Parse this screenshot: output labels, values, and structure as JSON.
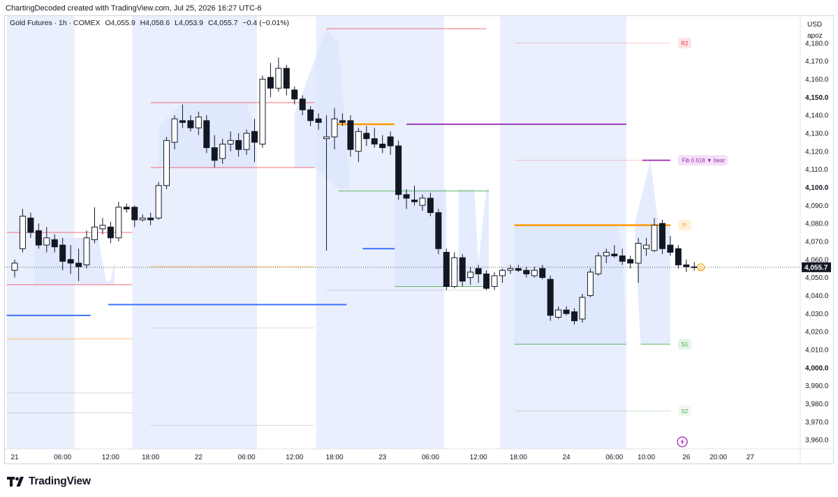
{
  "header": {
    "credit": "ChartingDecoded created with TradingView.com, Jul 25, 2026 16:27 UTC-6"
  },
  "legend": {
    "symbol": "Gold Futures · 1h · COMEX",
    "open": "O4,055.9",
    "high": "H4,058.6",
    "low": "L4,053.9",
    "close": "C4,055.7",
    "change": "−0.4 (−0.01%)"
  },
  "axis": {
    "currency": "USD",
    "user": "apoz"
  },
  "footer": {
    "brand": "TradingView"
  },
  "colors": {
    "session_shade": "#e9effd",
    "candle_body": "#131722",
    "candle_hollow": "#ffffff",
    "resistance": "#f7525f",
    "support": "#4caf50",
    "pivot": "#ff9800",
    "fib": "#9c27b0",
    "level_blue": "#2962ff",
    "zone_fill": "#dbe6fc",
    "price_label": "#131722"
  },
  "chart_data": {
    "type": "candlestick",
    "instrument": "Gold Futures · 1h · COMEX",
    "ylim": [
      3955,
      4195
    ],
    "y_ticks": [
      3960,
      3970,
      3980,
      3990,
      4000,
      4010,
      4020,
      4030,
      4040,
      4050,
      4060,
      4070,
      4080,
      4090,
      4100,
      4110,
      4120,
      4130,
      4140,
      4150,
      4160,
      4170,
      4180
    ],
    "y_tick_labels": [
      "3,960.0",
      "3,970.0",
      "3,980.0",
      "3,990.0",
      "4,000.0",
      "4,010.0",
      "4,020.0",
      "4,030.0",
      "4,040.0",
      "4,050.0",
      "4,060.0",
      "4,070.0",
      "4,080.0",
      "4,090.0",
      "4,100.0",
      "4,110.0",
      "4,120.0",
      "4,130.0",
      "4,140.0",
      "4,150.0",
      "4,160.0",
      "4,170.0",
      "4,180.0"
    ],
    "bold_ticks": [
      4000,
      4100,
      4150
    ],
    "x_labels": [
      {
        "label": "21",
        "hour": 0
      },
      {
        "label": "06:00",
        "hour": 6
      },
      {
        "label": "12:00",
        "hour": 12
      },
      {
        "label": "18:00",
        "hour": 17
      },
      {
        "label": "22",
        "hour": 23
      },
      {
        "label": "06:00",
        "hour": 29
      },
      {
        "label": "12:00",
        "hour": 35
      },
      {
        "label": "18:00",
        "hour": 40
      },
      {
        "label": "23",
        "hour": 46
      },
      {
        "label": "06:00",
        "hour": 52
      },
      {
        "label": "12:00",
        "hour": 58
      },
      {
        "label": "18:00",
        "hour": 63
      },
      {
        "label": "24",
        "hour": 69
      },
      {
        "label": "06:00",
        "hour": 75
      },
      {
        "label": "10:00",
        "hour": 79
      },
      {
        "label": "26",
        "hour": 84
      },
      {
        "label": "20:00",
        "hour": 88
      },
      {
        "label": "27",
        "hour": 92
      }
    ],
    "candles": [
      {
        "t": 0,
        "o": 4054,
        "h": 4060,
        "l": 4050,
        "c": 4058
      },
      {
        "t": 1,
        "o": 4066,
        "h": 4088,
        "l": 4064,
        "c": 4084
      },
      {
        "t": 2,
        "o": 4083,
        "h": 4086,
        "l": 4072,
        "c": 4075
      },
      {
        "t": 3,
        "o": 4076,
        "h": 4080,
        "l": 4066,
        "c": 4068
      },
      {
        "t": 4,
        "o": 4068,
        "h": 4078,
        "l": 4064,
        "c": 4072
      },
      {
        "t": 5,
        "o": 4071,
        "h": 4074,
        "l": 4064,
        "c": 4067
      },
      {
        "t": 6,
        "o": 4068,
        "h": 4072,
        "l": 4054,
        "c": 4059
      },
      {
        "t": 7,
        "o": 4060,
        "h": 4068,
        "l": 4052,
        "c": 4058
      },
      {
        "t": 8,
        "o": 4058,
        "h": 4066,
        "l": 4048,
        "c": 4056
      },
      {
        "t": 9,
        "o": 4057,
        "h": 4076,
        "l": 4055,
        "c": 4072
      },
      {
        "t": 10,
        "o": 4071,
        "h": 4089,
        "l": 4069,
        "c": 4078
      },
      {
        "t": 11,
        "o": 4077,
        "h": 4083,
        "l": 4074,
        "c": 4079
      },
      {
        "t": 12,
        "o": 4078,
        "h": 4081,
        "l": 4069,
        "c": 4072
      },
      {
        "t": 13,
        "o": 4072,
        "h": 4092,
        "l": 4070,
        "c": 4089
      },
      {
        "t": 14,
        "o": 4089,
        "h": 4091,
        "l": 4086,
        "c": 4088
      },
      {
        "t": 15,
        "o": 4089,
        "h": 4090,
        "l": 4078,
        "c": 4082
      },
      {
        "t": 16,
        "o": 4082,
        "h": 4085,
        "l": 4081,
        "c": 4083
      },
      {
        "t": 17,
        "o": 4083,
        "h": 4086,
        "l": 4079,
        "c": 4082
      },
      {
        "t": 18,
        "o": 4083,
        "h": 4103,
        "l": 4082,
        "c": 4101
      },
      {
        "t": 19,
        "o": 4101,
        "h": 4128,
        "l": 4099,
        "c": 4126
      },
      {
        "t": 20,
        "o": 4125,
        "h": 4140,
        "l": 4121,
        "c": 4138
      },
      {
        "t": 21,
        "o": 4137,
        "h": 4146,
        "l": 4133,
        "c": 4136
      },
      {
        "t": 22,
        "o": 4137,
        "h": 4140,
        "l": 4131,
        "c": 4133
      },
      {
        "t": 23,
        "o": 4133,
        "h": 4142,
        "l": 4129,
        "c": 4139
      },
      {
        "t": 24,
        "o": 4137,
        "h": 4140,
        "l": 4119,
        "c": 4122
      },
      {
        "t": 25,
        "o": 4122,
        "h": 4129,
        "l": 4111,
        "c": 4115
      },
      {
        "t": 26,
        "o": 4116,
        "h": 4127,
        "l": 4113,
        "c": 4124
      },
      {
        "t": 27,
        "o": 4124,
        "h": 4131,
        "l": 4120,
        "c": 4126
      },
      {
        "t": 28,
        "o": 4126,
        "h": 4130,
        "l": 4117,
        "c": 4121
      },
      {
        "t": 29,
        "o": 4121,
        "h": 4132,
        "l": 4118,
        "c": 4130
      },
      {
        "t": 30,
        "o": 4131,
        "h": 4138,
        "l": 4114,
        "c": 4125
      },
      {
        "t": 31,
        "o": 4124,
        "h": 4162,
        "l": 4122,
        "c": 4160
      },
      {
        "t": 32,
        "o": 4161,
        "h": 4169,
        "l": 4150,
        "c": 4155
      },
      {
        "t": 33,
        "o": 4155,
        "h": 4172,
        "l": 4153,
        "c": 4166
      },
      {
        "t": 34,
        "o": 4166,
        "h": 4168,
        "l": 4151,
        "c": 4155
      },
      {
        "t": 35,
        "o": 4154,
        "h": 4156,
        "l": 4146,
        "c": 4149
      },
      {
        "t": 36,
        "o": 4149,
        "h": 4151,
        "l": 4140,
        "c": 4143
      },
      {
        "t": 37,
        "o": 4143,
        "h": 4145,
        "l": 4134,
        "c": 4137
      },
      {
        "t": 38,
        "o": 4138,
        "h": 4141,
        "l": 4132,
        "c": 4136
      },
      {
        "t": 39,
        "o": 4127,
        "h": 4140,
        "l": 4065,
        "c": 4128
      },
      {
        "t": 40,
        "o": 4128,
        "h": 4144,
        "l": 4121,
        "c": 4138
      },
      {
        "t": 41,
        "o": 4137,
        "h": 4141,
        "l": 4134,
        "c": 4136
      },
      {
        "t": 42,
        "o": 4137,
        "h": 4140,
        "l": 4117,
        "c": 4121
      },
      {
        "t": 43,
        "o": 4120,
        "h": 4133,
        "l": 4114,
        "c": 4131
      },
      {
        "t": 44,
        "o": 4130,
        "h": 4134,
        "l": 4123,
        "c": 4127
      },
      {
        "t": 45,
        "o": 4127,
        "h": 4133,
        "l": 4122,
        "c": 4124
      },
      {
        "t": 46,
        "o": 4124,
        "h": 4129,
        "l": 4119,
        "c": 4122
      },
      {
        "t": 47,
        "o": 4128,
        "h": 4131,
        "l": 4118,
        "c": 4123
      },
      {
        "t": 48,
        "o": 4123,
        "h": 4126,
        "l": 4093,
        "c": 4096
      },
      {
        "t": 49,
        "o": 4096,
        "h": 4099,
        "l": 4088,
        "c": 4094
      },
      {
        "t": 50,
        "o": 4093,
        "h": 4101,
        "l": 4090,
        "c": 4092
      },
      {
        "t": 51,
        "o": 4090,
        "h": 4096,
        "l": 4087,
        "c": 4094
      },
      {
        "t": 52,
        "o": 4094,
        "h": 4097,
        "l": 4084,
        "c": 4086
      },
      {
        "t": 53,
        "o": 4086,
        "h": 4088,
        "l": 4063,
        "c": 4066
      },
      {
        "t": 54,
        "o": 4064,
        "h": 4066,
        "l": 4043,
        "c": 4045
      },
      {
        "t": 55,
        "o": 4045,
        "h": 4064,
        "l": 4044,
        "c": 4061
      },
      {
        "t": 56,
        "o": 4061,
        "h": 4063,
        "l": 4045,
        "c": 4048
      },
      {
        "t": 57,
        "o": 4050,
        "h": 4056,
        "l": 4046,
        "c": 4053
      },
      {
        "t": 58,
        "o": 4055,
        "h": 4057,
        "l": 4047,
        "c": 4052
      },
      {
        "t": 59,
        "o": 4052,
        "h": 4054,
        "l": 4043,
        "c": 4044
      },
      {
        "t": 60,
        "o": 4045,
        "h": 4053,
        "l": 4043,
        "c": 4051
      },
      {
        "t": 61,
        "o": 4051,
        "h": 4055,
        "l": 4047,
        "c": 4054
      },
      {
        "t": 62,
        "o": 4054,
        "h": 4057,
        "l": 4052,
        "c": 4055
      },
      {
        "t": 63,
        "o": 4055,
        "h": 4057,
        "l": 4053,
        "c": 4054
      },
      {
        "t": 64,
        "o": 4054,
        "h": 4056,
        "l": 4050,
        "c": 4052
      },
      {
        "t": 65,
        "o": 4051,
        "h": 4056,
        "l": 4050,
        "c": 4054
      },
      {
        "t": 66,
        "o": 4055,
        "h": 4057,
        "l": 4049,
        "c": 4050
      },
      {
        "t": 67,
        "o": 4049,
        "h": 4051,
        "l": 4026,
        "c": 4029
      },
      {
        "t": 68,
        "o": 4028,
        "h": 4034,
        "l": 4027,
        "c": 4032
      },
      {
        "t": 69,
        "o": 4032,
        "h": 4034,
        "l": 4029,
        "c": 4030
      },
      {
        "t": 70,
        "o": 4031,
        "h": 4033,
        "l": 4024,
        "c": 4026
      },
      {
        "t": 71,
        "o": 4027,
        "h": 4041,
        "l": 4025,
        "c": 4039
      },
      {
        "t": 72,
        "o": 4040,
        "h": 4055,
        "l": 4039,
        "c": 4053
      },
      {
        "t": 73,
        "o": 4052,
        "h": 4064,
        "l": 4051,
        "c": 4062
      },
      {
        "t": 74,
        "o": 4062,
        "h": 4066,
        "l": 4058,
        "c": 4064
      },
      {
        "t": 75,
        "o": 4063,
        "h": 4068,
        "l": 4061,
        "c": 4062
      },
      {
        "t": 76,
        "o": 4062,
        "h": 4066,
        "l": 4057,
        "c": 4059
      },
      {
        "t": 77,
        "o": 4060,
        "h": 4062,
        "l": 4055,
        "c": 4058
      },
      {
        "t": 78,
        "o": 4058,
        "h": 4072,
        "l": 4047,
        "c": 4069
      },
      {
        "t": 79,
        "o": 4066,
        "h": 4072,
        "l": 4062,
        "c": 4068
      },
      {
        "t": 80,
        "o": 4065,
        "h": 4083,
        "l": 4064,
        "c": 4079
      },
      {
        "t": 81,
        "o": 4080,
        "h": 4082,
        "l": 4063,
        "c": 4066
      },
      {
        "t": 82,
        "o": 4068,
        "h": 4073,
        "l": 4062,
        "c": 4064
      },
      {
        "t": 83,
        "o": 4066,
        "h": 4068,
        "l": 4055,
        "c": 4057
      },
      {
        "t": 84,
        "o": 4057,
        "h": 4060,
        "l": 4053,
        "c": 4056
      },
      {
        "t": 85,
        "o": 4055.9,
        "h": 4058.6,
        "l": 4053.9,
        "c": 4055.7
      }
    ],
    "sessions": [
      [
        -1,
        7.5
      ],
      [
        14.7,
        30.3
      ],
      [
        37.7,
        53.7
      ],
      [
        60.7,
        76.5
      ]
    ],
    "levels": [
      {
        "name": "r-line-1",
        "kind": "resistance",
        "y": 4075,
        "from": -1,
        "to": 14.7
      },
      {
        "name": "r-line-2",
        "kind": "resistance",
        "y": 4147,
        "from": 17,
        "to": 37.5
      },
      {
        "name": "r-line-3",
        "kind": "resistance",
        "y": 4188,
        "from": 39,
        "to": 59
      },
      {
        "name": "r2-line",
        "kind": "resistance-faint",
        "y": 4180,
        "from": 62.5,
        "to": 82
      },
      {
        "name": "fib-faint-line",
        "kind": "resistance-faint",
        "y": 4115,
        "from": 62.5,
        "to": 78.5
      },
      {
        "name": "s-line-1",
        "kind": "resistance",
        "y": 4046,
        "from": -1,
        "to": 14.7
      },
      {
        "name": "s-line-2",
        "kind": "resistance",
        "y": 4111,
        "from": 17,
        "to": 37.5
      },
      {
        "name": "pivot-line-1",
        "kind": "pivot",
        "y": 4135,
        "from": 40,
        "to": 47.5
      },
      {
        "name": "pivot-line-2",
        "kind": "pivot",
        "y": 4079,
        "from": 62.5,
        "to": 82
      },
      {
        "name": "pivot-faint-line-1",
        "kind": "pivot-faint",
        "y": 4056,
        "from": 17,
        "to": 37.5
      },
      {
        "name": "pivot-faint-line-2",
        "kind": "pivot-faint",
        "y": 4016,
        "from": -1,
        "to": 14.7
      },
      {
        "name": "fib-line-1",
        "kind": "fib",
        "y": 4135,
        "from": 49,
        "to": 76.5
      },
      {
        "name": "fib-line-2",
        "kind": "fib",
        "y": 4115,
        "from": 78.5,
        "to": 82
      },
      {
        "name": "blue-line-1",
        "kind": "blue",
        "y": 4029,
        "from": -1,
        "to": 9.5
      },
      {
        "name": "blue-line-2",
        "kind": "blue",
        "y": 4035,
        "from": 11.7,
        "to": 41.5
      },
      {
        "name": "blue-line-3",
        "kind": "blue",
        "y": 4066,
        "from": 43.5,
        "to": 47.5
      },
      {
        "name": "support-line-1",
        "kind": "support",
        "y": 4098,
        "from": 40.5,
        "to": 59.3
      },
      {
        "name": "support-line-2",
        "kind": "support",
        "y": 4045,
        "from": 47.5,
        "to": 59.3
      },
      {
        "name": "s1-line-1",
        "kind": "support",
        "y": 4013,
        "from": 62.5,
        "to": 76.5
      },
      {
        "name": "s1-line-2",
        "kind": "support",
        "y": 4013,
        "from": 78.3,
        "to": 82
      },
      {
        "name": "gray-line-1",
        "kind": "gray",
        "y": 4022,
        "from": 17,
        "to": 37.5
      },
      {
        "name": "gray-line-2",
        "kind": "gray",
        "y": 3968,
        "from": 17,
        "to": 37.5
      },
      {
        "name": "gray-line-3",
        "kind": "gray",
        "y": 3986,
        "from": -1,
        "to": 14.7
      },
      {
        "name": "gray-line-4",
        "kind": "gray",
        "y": 3975,
        "from": -1,
        "to": 14.7
      },
      {
        "name": "gray-line-5",
        "kind": "gray",
        "y": 4043,
        "from": 39,
        "to": 59
      },
      {
        "name": "s2-line",
        "kind": "support-faint",
        "y": 3976,
        "from": 62.5,
        "to": 82
      }
    ],
    "zones": [
      {
        "name": "zone-1",
        "points": [
          [
            2.5,
            4072
          ],
          [
            10.5,
            4072
          ],
          [
            11,
            4058
          ],
          [
            11.5,
            4048
          ],
          [
            12,
            4048
          ],
          [
            12.5,
            4059
          ],
          [
            12.5,
            4046
          ],
          [
            2.5,
            4046
          ]
        ]
      },
      {
        "name": "zone-2",
        "points": [
          [
            18,
            4134
          ],
          [
            21,
            4147
          ],
          [
            29,
            4147
          ],
          [
            30,
            4133
          ],
          [
            30,
            4111
          ],
          [
            18,
            4111
          ]
        ]
      },
      {
        "name": "zone-3",
        "points": [
          [
            35,
            4141
          ],
          [
            39,
            4188
          ],
          [
            40.5,
            4180
          ],
          [
            42,
            4099
          ],
          [
            54,
            4099
          ],
          [
            54,
            4045
          ],
          [
            47.5,
            4045
          ],
          [
            47.5,
            4099
          ],
          [
            40.5,
            4099
          ],
          [
            37.5,
            4111
          ],
          [
            35,
            4111
          ]
        ]
      },
      {
        "name": "zone-4",
        "points": [
          [
            55.5,
            4099
          ],
          [
            57.5,
            4099
          ],
          [
            58,
            4058
          ],
          [
            59,
            4099
          ],
          [
            59.3,
            4099
          ],
          [
            59.3,
            4045
          ],
          [
            55.5,
            4045
          ]
        ]
      },
      {
        "name": "zone-5",
        "points": [
          [
            62.5,
            4079
          ],
          [
            75.5,
            4079
          ],
          [
            76,
            4060
          ],
          [
            76.5,
            4013
          ],
          [
            62.5,
            4013
          ]
        ]
      },
      {
        "name": "zone-6",
        "points": [
          [
            77.5,
            4079
          ],
          [
            79.5,
            4115
          ],
          [
            80.5,
            4079
          ],
          [
            82,
            4079
          ],
          [
            82,
            4013
          ],
          [
            78.3,
            4013
          ]
        ]
      }
    ],
    "level_labels": [
      {
        "text": "R2",
        "y": 4180,
        "x": 83,
        "kind": "resistance"
      },
      {
        "text": "Fib 0.618 ▼ bear",
        "y": 4115,
        "x": 83,
        "kind": "fib"
      },
      {
        "text": "P",
        "y": 4079,
        "x": 83,
        "kind": "pivot"
      },
      {
        "text": "D",
        "y": 4055.7,
        "x": 85.3,
        "kind": "pivot-circle"
      },
      {
        "text": "S1",
        "y": 4013,
        "x": 83,
        "kind": "support"
      },
      {
        "text": "S2",
        "y": 3976,
        "x": 83,
        "kind": "support-faint"
      }
    ],
    "last_price": {
      "value": 4055.7,
      "label": "4,055.7"
    },
    "zap_marker_x": 83.5
  }
}
